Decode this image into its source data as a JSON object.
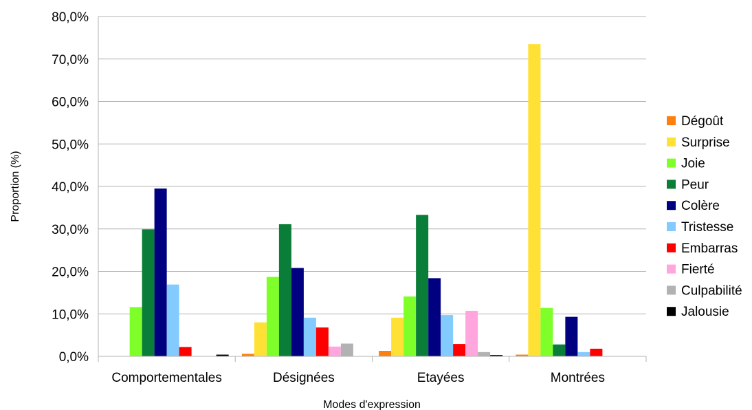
{
  "chart_data": {
    "type": "bar",
    "xlabel": "Modes d'expression",
    "ylabel": "Proportion (%)",
    "ylim": [
      0,
      80
    ],
    "yticks": [
      0,
      10,
      20,
      30,
      40,
      50,
      60,
      70,
      80
    ],
    "ytick_labels": [
      "0,0%",
      "10,0%",
      "20,0%",
      "30,0%",
      "40,0%",
      "50,0%",
      "60,0%",
      "70,0%",
      "80,0%"
    ],
    "grid": true,
    "legend_position": "right",
    "categories": [
      "Comportementales",
      "Désignées",
      "Etayées",
      "Montrées"
    ],
    "series": [
      {
        "name": "Dégoût",
        "color": "#ff7f0e",
        "values": [
          0,
          0.6,
          1.3,
          0.4
        ]
      },
      {
        "name": "Surprise",
        "color": "#ffe135",
        "values": [
          0,
          8.0,
          9.1,
          73.5
        ]
      },
      {
        "name": "Joie",
        "color": "#7fff2a",
        "values": [
          11.6,
          18.7,
          14.1,
          11.4
        ]
      },
      {
        "name": "Peur",
        "color": "#0a7d38",
        "values": [
          29.9,
          31.1,
          33.3,
          2.8
        ]
      },
      {
        "name": "Colère",
        "color": "#000080",
        "values": [
          39.5,
          20.8,
          18.4,
          9.3
        ]
      },
      {
        "name": "Tristesse",
        "color": "#83caff",
        "values": [
          16.9,
          9.1,
          9.7,
          1.0
        ]
      },
      {
        "name": "Embarras",
        "color": "#ff0000",
        "values": [
          2.2,
          6.8,
          2.9,
          1.8
        ]
      },
      {
        "name": "Fierté",
        "color": "#ffa6df",
        "values": [
          0,
          2.3,
          10.7,
          0
        ]
      },
      {
        "name": "Culpabilité",
        "color": "#b2b2b2",
        "values": [
          0,
          3.0,
          1.0,
          0
        ]
      },
      {
        "name": "Jalousie",
        "color": "#000000",
        "values": [
          0.4,
          0,
          0.3,
          0
        ]
      }
    ]
  }
}
